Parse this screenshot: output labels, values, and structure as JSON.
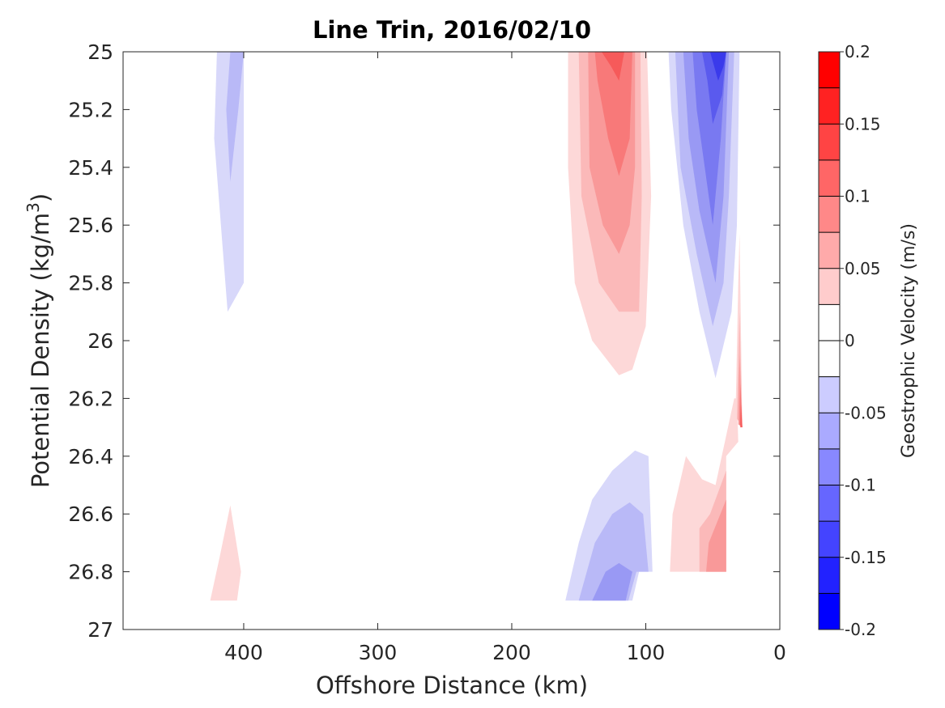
{
  "chart_data": {
    "type": "contour",
    "title": "Line Trin, 2016/02/10",
    "xlabel": "Offshore Distance (km)",
    "ylabel_main": "Potential Density (kg/m",
    "ylabel_sup": "3",
    "ylabel_end": ")",
    "xlim": [
      490,
      0
    ],
    "x_reversed": true,
    "ylim": [
      25,
      27
    ],
    "y_reversed": true,
    "xticks": [
      400,
      300,
      200,
      100,
      0
    ],
    "xtick_labels": [
      "400",
      "300",
      "200",
      "100",
      "0"
    ],
    "yticks": [
      25,
      25.2,
      25.4,
      25.6,
      25.8,
      26,
      26.2,
      26.4,
      26.6,
      26.8,
      27
    ],
    "ytick_labels": [
      "25",
      "25.2",
      "25.4",
      "25.6",
      "25.8",
      "26",
      "26.2",
      "26.4",
      "26.6",
      "26.8",
      "27"
    ],
    "colorbar": {
      "label": "Geostrophic Velocity (m/s)",
      "range": [
        -0.2,
        0.2
      ],
      "step": 0.025,
      "ticks": [
        0.2,
        0.15,
        0.1,
        0.05,
        0,
        -0.05,
        -0.1,
        -0.15,
        -0.2
      ],
      "tick_labels": [
        "0.2",
        "0.15",
        "0.1",
        "0.05",
        "0",
        "-0.05",
        "-0.1",
        "-0.15",
        "-0.2"
      ],
      "colors_top_to_bottom": [
        "#ff0000",
        "#ff2222",
        "#ff4444",
        "#ff6666",
        "#ff8888",
        "#ffaaaa",
        "#ffcccc",
        "#ffffff",
        "#ffffff",
        "#ccccff",
        "#aaaaff",
        "#8888ff",
        "#6666ff",
        "#4444ff",
        "#2222ff",
        "#0000ff"
      ]
    },
    "regions": [
      {
        "level": -0.025,
        "color": "#d8d8fa",
        "points": [
          [
            420,
            25
          ],
          [
            400,
            25
          ],
          [
            400,
            25.8
          ],
          [
            412,
            25.9
          ],
          [
            417,
            25.6
          ],
          [
            422,
            25.3
          ]
        ]
      },
      {
        "level": -0.05,
        "color": "#b9b9f7",
        "points": [
          [
            410,
            25
          ],
          [
            400,
            25
          ],
          [
            404,
            25.2
          ],
          [
            410,
            25.45
          ],
          [
            413,
            25.2
          ]
        ]
      },
      {
        "level": 0.025,
        "color": "#fdd8d8",
        "points": [
          [
            425,
            26.9
          ],
          [
            405,
            26.9
          ],
          [
            402,
            26.8
          ],
          [
            410,
            26.57
          ],
          [
            418,
            26.75
          ]
        ]
      },
      {
        "level": 0.025,
        "color": "#fdd8d8",
        "points": [
          [
            158,
            25
          ],
          [
            99,
            25
          ],
          [
            96,
            25.5
          ],
          [
            100,
            25.95
          ],
          [
            110,
            26.1
          ],
          [
            120,
            26.12
          ],
          [
            140,
            26
          ],
          [
            153,
            25.8
          ],
          [
            158,
            25.4
          ]
        ]
      },
      {
        "level": 0.05,
        "color": "#fbb9b9",
        "points": [
          [
            150,
            25
          ],
          [
            104,
            25
          ],
          [
            103,
            25.5
          ],
          [
            105,
            25.9
          ],
          [
            120,
            25.9
          ],
          [
            135,
            25.8
          ],
          [
            148,
            25.5
          ]
        ]
      },
      {
        "level": 0.075,
        "color": "#f99999",
        "points": [
          [
            143,
            25
          ],
          [
            108,
            25
          ],
          [
            108,
            25.4
          ],
          [
            112,
            25.6
          ],
          [
            120,
            25.7
          ],
          [
            132,
            25.6
          ],
          [
            142,
            25.4
          ]
        ]
      },
      {
        "level": 0.1,
        "color": "#f87979",
        "points": [
          [
            138,
            25
          ],
          [
            110,
            25
          ],
          [
            112,
            25.3
          ],
          [
            120,
            25.43
          ],
          [
            128,
            25.3
          ],
          [
            136,
            25.1
          ]
        ]
      },
      {
        "level": 0.125,
        "color": "#f65a5a",
        "points": [
          [
            133,
            25
          ],
          [
            116,
            25
          ],
          [
            120,
            25.1
          ],
          [
            126,
            25.05
          ]
        ]
      },
      {
        "level": -0.025,
        "color": "#d8d8fa",
        "points": [
          [
            83,
            25
          ],
          [
            30,
            25
          ],
          [
            32,
            25.6
          ],
          [
            36,
            25.9
          ],
          [
            48,
            26.13
          ],
          [
            60,
            25.9
          ],
          [
            72,
            25.6
          ],
          [
            81,
            25.2
          ]
        ]
      },
      {
        "level": -0.05,
        "color": "#b9b9f7",
        "points": [
          [
            78,
            25
          ],
          [
            34,
            25
          ],
          [
            38,
            25.5
          ],
          [
            42,
            25.8
          ],
          [
            50,
            25.95
          ],
          [
            62,
            25.7
          ],
          [
            74,
            25.4
          ]
        ]
      },
      {
        "level": -0.075,
        "color": "#9999f4",
        "points": [
          [
            72,
            25
          ],
          [
            38,
            25
          ],
          [
            42,
            25.5
          ],
          [
            48,
            25.8
          ],
          [
            60,
            25.55
          ],
          [
            68,
            25.3
          ]
        ]
      },
      {
        "level": -0.1,
        "color": "#7979f1",
        "points": [
          [
            65,
            25
          ],
          [
            40,
            25
          ],
          [
            44,
            25.3
          ],
          [
            50,
            25.6
          ],
          [
            56,
            25.4
          ],
          [
            62,
            25.2
          ]
        ]
      },
      {
        "level": -0.125,
        "color": "#5a5aee",
        "points": [
          [
            58,
            25
          ],
          [
            40,
            25
          ],
          [
            43,
            25.15
          ],
          [
            50,
            25.25
          ],
          [
            54,
            25.1
          ]
        ]
      },
      {
        "level": -0.15,
        "color": "#3a3aeb",
        "points": [
          [
            52,
            25
          ],
          [
            40,
            25
          ],
          [
            42,
            25.05
          ],
          [
            46,
            25.1
          ],
          [
            49,
            25.05
          ]
        ]
      },
      {
        "level": 0.025,
        "color": "#fdd8d8",
        "points": [
          [
            40,
            26.4
          ],
          [
            31,
            26.35
          ],
          [
            32,
            26.2
          ],
          [
            34,
            26.2
          ],
          [
            48,
            26.5
          ],
          [
            58,
            26.48
          ],
          [
            70,
            26.4
          ],
          [
            80,
            26.6
          ],
          [
            82,
            26.8
          ],
          [
            40,
            26.8
          ]
        ]
      },
      {
        "level": 0.05,
        "color": "#fbb9b9",
        "points": [
          [
            40,
            26.45
          ],
          [
            40,
            26.8
          ],
          [
            60,
            26.8
          ],
          [
            60,
            26.65
          ],
          [
            52,
            26.6
          ]
        ]
      },
      {
        "level": 0.075,
        "color": "#f99999",
        "points": [
          [
            40,
            26.55
          ],
          [
            40,
            26.8
          ],
          [
            55,
            26.8
          ],
          [
            53,
            26.7
          ]
        ]
      },
      {
        "level": 0.025,
        "color": "#fdd8d8",
        "points": [
          [
            30,
            25.63
          ],
          [
            28,
            26.3
          ],
          [
            33,
            26.25
          ],
          [
            31,
            25.8
          ]
        ]
      },
      {
        "level": 0.05,
        "color": "#fbb9b9",
        "points": [
          [
            30,
            25.9
          ],
          [
            28,
            26.3
          ],
          [
            32,
            26.27
          ],
          [
            31,
            26.05
          ]
        ]
      },
      {
        "level": 0.075,
        "color": "#f99999",
        "points": [
          [
            30,
            26.05
          ],
          [
            28,
            26.3
          ],
          [
            31,
            26.29
          ],
          [
            30.5,
            26.15
          ]
        ]
      },
      {
        "level": 0.1,
        "color": "#f87979",
        "points": [
          [
            29.5,
            26.15
          ],
          [
            28,
            26.3
          ],
          [
            30,
            26.29
          ]
        ]
      },
      {
        "level": 0.125,
        "color": "#f65a5a",
        "points": [
          [
            29,
            26.22
          ],
          [
            28,
            26.3
          ],
          [
            29.5,
            26.3
          ]
        ]
      },
      {
        "level": -0.025,
        "color": "#d8d8fa",
        "points": [
          [
            160,
            26.9
          ],
          [
            150,
            26.7
          ],
          [
            140,
            26.55
          ],
          [
            125,
            26.45
          ],
          [
            108,
            26.38
          ],
          [
            98,
            26.4
          ],
          [
            95,
            26.8
          ],
          [
            105,
            26.8
          ],
          [
            110,
            26.9
          ]
        ]
      },
      {
        "level": -0.05,
        "color": "#b9b9f7",
        "points": [
          [
            150,
            26.9
          ],
          [
            138,
            26.7
          ],
          [
            125,
            26.6
          ],
          [
            112,
            26.56
          ],
          [
            102,
            26.6
          ],
          [
            98,
            26.8
          ],
          [
            107,
            26.8
          ],
          [
            113,
            26.9
          ]
        ]
      },
      {
        "level": -0.075,
        "color": "#9999f4",
        "points": [
          [
            140,
            26.9
          ],
          [
            130,
            26.8
          ],
          [
            120,
            26.77
          ],
          [
            110,
            26.8
          ],
          [
            115,
            26.9
          ]
        ]
      }
    ]
  }
}
